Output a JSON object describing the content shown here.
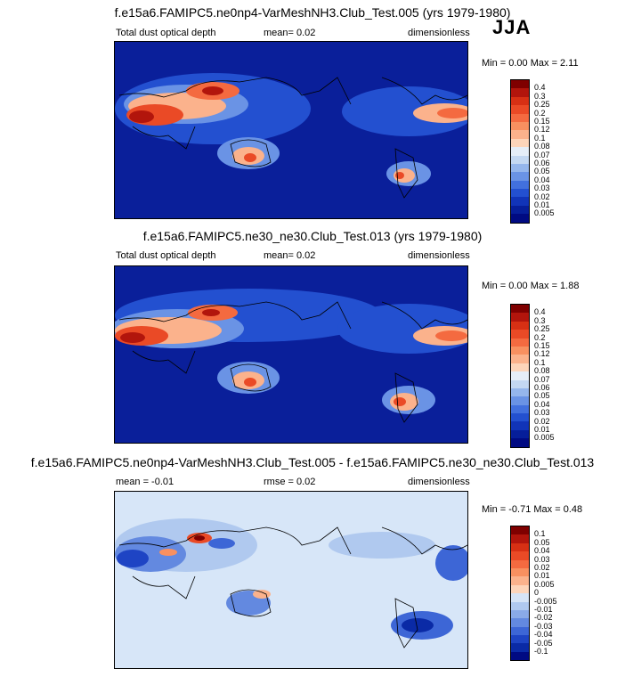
{
  "season": "JJA",
  "panels": [
    {
      "title": "f.e15a6.FAMIPC5.ne0np4-VarMeshNH3.Club_Test.005 (yrs 1979-1980)",
      "left_label": "Total dust optical depth",
      "mid_label": "mean=   0.02",
      "right_label": "dimensionless",
      "minmax": "Min =  0.00 Max =   2.11",
      "colorbar": {
        "labels": [
          "0.4",
          "0.3",
          "0.25",
          "0.2",
          "0.15",
          "0.12",
          "0.1",
          "0.08",
          "0.07",
          "0.06",
          "0.05",
          "0.04",
          "0.03",
          "0.02",
          "0.01",
          "0.005"
        ],
        "colors": [
          "#7f0000",
          "#b2150c",
          "#d73014",
          "#ea4a26",
          "#f46a40",
          "#f89060",
          "#fbb28c",
          "#fdd5ba",
          "#e6eef8",
          "#c4d8f2",
          "#95b6ec",
          "#6a93e5",
          "#4270de",
          "#2350d0",
          "#1134b8",
          "#061e9a",
          "#000a82"
        ]
      },
      "map": {
        "background": "#0a1f9a"
      }
    },
    {
      "title": "f.e15a6.FAMIPC5.ne30_ne30.Club_Test.013 (yrs 1979-1980)",
      "left_label": "Total dust optical depth",
      "mid_label": "mean=   0.02",
      "right_label": "dimensionless",
      "minmax": "Min =  0.00 Max =   1.88",
      "colorbar": {
        "labels": [
          "0.4",
          "0.3",
          "0.25",
          "0.2",
          "0.15",
          "0.12",
          "0.1",
          "0.08",
          "0.07",
          "0.06",
          "0.05",
          "0.04",
          "0.03",
          "0.02",
          "0.01",
          "0.005"
        ],
        "colors": [
          "#7f0000",
          "#b2150c",
          "#d73014",
          "#ea4a26",
          "#f46a40",
          "#f89060",
          "#fbb28c",
          "#fdd5ba",
          "#e6eef8",
          "#c4d8f2",
          "#95b6ec",
          "#6a93e5",
          "#4270de",
          "#2350d0",
          "#1134b8",
          "#061e9a",
          "#000a82"
        ]
      },
      "map": {
        "background": "#0a1f9a"
      }
    },
    {
      "title": "f.e15a6.FAMIPC5.ne0np4-VarMeshNH3.Club_Test.005 - f.e15a6.FAMIPC5.ne30_ne30.Club_Test.013",
      "left_label": "mean =  -0.01",
      "mid_label": "rmse =   0.02",
      "right_label": "dimensionless",
      "minmax": "Min =  -0.71 Max =   0.48",
      "colorbar": {
        "labels": [
          "0.1",
          "0.05",
          "0.04",
          "0.03",
          "0.02",
          "0.01",
          "0.005",
          "0",
          "-0.005",
          "-0.01",
          "-0.02",
          "-0.03",
          "-0.04",
          "-0.05",
          "-0.1"
        ],
        "colors": [
          "#7f0000",
          "#b2150c",
          "#d73014",
          "#ea4a26",
          "#f46a40",
          "#f89060",
          "#fbb28c",
          "#fdd5ba",
          "#d6e4f6",
          "#b0c9ef",
          "#8aaae8",
          "#6389e0",
          "#3d66d6",
          "#1e44c4",
          "#0a2aa6",
          "#000a82"
        ]
      },
      "map": {
        "background": "#d7e6f8"
      }
    }
  ],
  "chart_data": [
    {
      "type": "heatmap",
      "title": "f.e15a6.FAMIPC5.ne0np4-VarMeshNH3.Club_Test.005 (yrs 1979-1980)",
      "variable": "Total dust optical depth",
      "units": "dimensionless",
      "mean": 0.02,
      "min": 0.0,
      "max": 2.11,
      "levels": [
        0.005,
        0.01,
        0.02,
        0.03,
        0.04,
        0.05,
        0.06,
        0.07,
        0.08,
        0.1,
        0.12,
        0.15,
        0.2,
        0.25,
        0.3,
        0.4
      ]
    },
    {
      "type": "heatmap",
      "title": "f.e15a6.FAMIPC5.ne30_ne30.Club_Test.013 (yrs 1979-1980)",
      "variable": "Total dust optical depth",
      "units": "dimensionless",
      "mean": 0.02,
      "min": 0.0,
      "max": 1.88,
      "levels": [
        0.005,
        0.01,
        0.02,
        0.03,
        0.04,
        0.05,
        0.06,
        0.07,
        0.08,
        0.1,
        0.12,
        0.15,
        0.2,
        0.25,
        0.3,
        0.4
      ]
    },
    {
      "type": "heatmap",
      "title": "f.e15a6.FAMIPC5.ne0np4-VarMeshNH3.Club_Test.005 - f.e15a6.FAMIPC5.ne30_ne30.Club_Test.013",
      "units": "dimensionless",
      "mean": -0.01,
      "rmse": 0.02,
      "min": -0.71,
      "max": 0.48,
      "levels": [
        -0.1,
        -0.05,
        -0.04,
        -0.03,
        -0.02,
        -0.01,
        -0.005,
        0,
        0.005,
        0.01,
        0.02,
        0.03,
        0.04,
        0.05,
        0.1
      ]
    }
  ]
}
